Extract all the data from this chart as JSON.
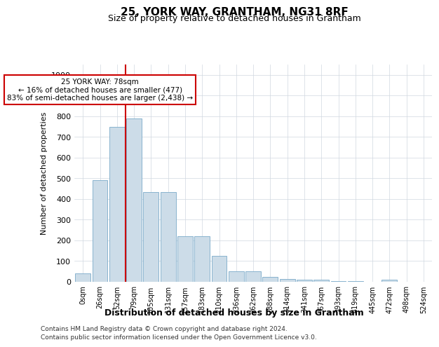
{
  "title": "25, YORK WAY, GRANTHAM, NG31 8RF",
  "subtitle": "Size of property relative to detached houses in Grantham",
  "xlabel": "Distribution of detached houses by size in Grantham",
  "ylabel": "Number of detached properties",
  "bar_color": "#ccdce8",
  "bar_edge_color": "#7aaac8",
  "annotation_box_edge": "#cc0000",
  "annotation_line_color": "#cc0000",
  "grid_color": "#d0d8e0",
  "footnote1": "Contains HM Land Registry data © Crown copyright and database right 2024.",
  "footnote2": "Contains public sector information licensed under the Open Government Licence v3.0.",
  "ann_line1": "25 YORK WAY: 78sqm",
  "ann_line2": "← 16% of detached houses are smaller (477)",
  "ann_line3": "83% of semi-detached houses are larger (2,438) →",
  "ylim": [
    0,
    1050
  ],
  "yticks": [
    0,
    100,
    200,
    300,
    400,
    500,
    600,
    700,
    800,
    900,
    1000
  ],
  "categories": [
    "0sqm",
    "26sqm",
    "52sqm",
    "79sqm",
    "105sqm",
    "131sqm",
    "157sqm",
    "183sqm",
    "210sqm",
    "236sqm",
    "262sqm",
    "288sqm",
    "314sqm",
    "341sqm",
    "367sqm",
    "393sqm",
    "419sqm",
    "445sqm",
    "472sqm",
    "498sqm",
    "524sqm"
  ],
  "values": [
    40,
    490,
    750,
    790,
    435,
    435,
    220,
    220,
    125,
    50,
    50,
    25,
    12,
    10,
    10,
    5,
    5,
    0,
    10,
    0,
    0
  ],
  "red_line_x": 2.5
}
